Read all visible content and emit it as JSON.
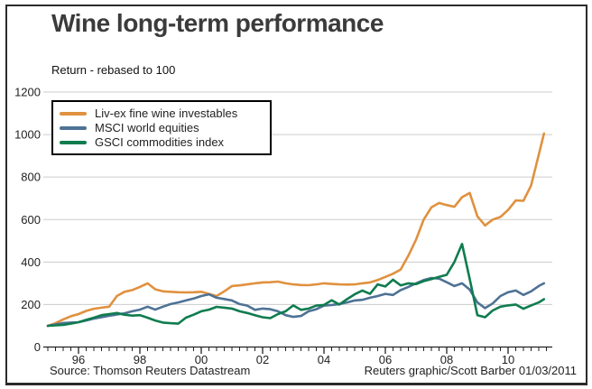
{
  "title": "Wine long-term performance",
  "subtitle": "Return - rebased to 100",
  "source": "Source: Thomson Reuters Datastream",
  "credit": "Reuters graphic/Scott Barber 01/03/2011",
  "colors": {
    "wine": "#E0913F",
    "equities": "#4E7295",
    "commodities": "#0F7C4F",
    "grid": "#cccccc",
    "axis": "#222222",
    "text": "#222222",
    "frame_border": "#2b2b2b"
  },
  "chart_data": {
    "type": "line",
    "title": "Wine long-term performance",
    "ylabel": "Return - rebased to 100",
    "ylim": [
      0,
      1200
    ],
    "y_ticks": [
      0,
      200,
      400,
      600,
      800,
      1000,
      1200
    ],
    "xlim": [
      1995,
      2011.3
    ],
    "x_tick_years": [
      1996,
      1998,
      2000,
      2002,
      2004,
      2006,
      2008,
      2010
    ],
    "x_tick_labels": [
      "96",
      "98",
      "00",
      "02",
      "04",
      "06",
      "08",
      "10"
    ],
    "minor_tick_step_years": 0.25,
    "grid": "horizontal",
    "legend_position": "top-left",
    "series": [
      {
        "name": "Liv-ex fine wine investables",
        "color": "#E0913F",
        "points": [
          [
            1995.0,
            100
          ],
          [
            1995.25,
            112
          ],
          [
            1995.5,
            130
          ],
          [
            1995.75,
            145
          ],
          [
            1996.0,
            155
          ],
          [
            1996.25,
            170
          ],
          [
            1996.5,
            180
          ],
          [
            1996.75,
            185
          ],
          [
            1997.0,
            190
          ],
          [
            1997.25,
            240
          ],
          [
            1997.5,
            260
          ],
          [
            1997.75,
            268
          ],
          [
            1998.0,
            283
          ],
          [
            1998.25,
            300
          ],
          [
            1998.5,
            272
          ],
          [
            1998.75,
            262
          ],
          [
            1999.0,
            260
          ],
          [
            1999.25,
            258
          ],
          [
            1999.5,
            257
          ],
          [
            1999.75,
            258
          ],
          [
            2000.0,
            260
          ],
          [
            2000.25,
            250
          ],
          [
            2000.5,
            240
          ],
          [
            2000.75,
            262
          ],
          [
            2001.0,
            287
          ],
          [
            2001.25,
            290
          ],
          [
            2001.5,
            295
          ],
          [
            2001.75,
            300
          ],
          [
            2002.0,
            304
          ],
          [
            2002.25,
            305
          ],
          [
            2002.5,
            308
          ],
          [
            2002.75,
            300
          ],
          [
            2003.0,
            295
          ],
          [
            2003.25,
            292
          ],
          [
            2003.5,
            291
          ],
          [
            2003.75,
            295
          ],
          [
            2004.0,
            300
          ],
          [
            2004.25,
            297
          ],
          [
            2004.5,
            295
          ],
          [
            2004.75,
            294
          ],
          [
            2005.0,
            295
          ],
          [
            2005.25,
            300
          ],
          [
            2005.5,
            304
          ],
          [
            2005.75,
            315
          ],
          [
            2006.0,
            330
          ],
          [
            2006.25,
            345
          ],
          [
            2006.5,
            365
          ],
          [
            2006.75,
            430
          ],
          [
            2007.0,
            505
          ],
          [
            2007.25,
            600
          ],
          [
            2007.5,
            657
          ],
          [
            2007.75,
            678
          ],
          [
            2008.0,
            668
          ],
          [
            2008.25,
            660
          ],
          [
            2008.5,
            705
          ],
          [
            2008.75,
            725
          ],
          [
            2009.0,
            615
          ],
          [
            2009.25,
            572
          ],
          [
            2009.5,
            600
          ],
          [
            2009.75,
            612
          ],
          [
            2010.0,
            645
          ],
          [
            2010.25,
            690
          ],
          [
            2010.5,
            688
          ],
          [
            2010.75,
            760
          ],
          [
            2011.0,
            905
          ],
          [
            2011.17,
            1005
          ]
        ]
      },
      {
        "name": "MSCI world equities",
        "color": "#4E7295",
        "points": [
          [
            1995.0,
            100
          ],
          [
            1995.25,
            106
          ],
          [
            1995.5,
            113
          ],
          [
            1995.75,
            115
          ],
          [
            1996.0,
            117
          ],
          [
            1996.25,
            125
          ],
          [
            1996.5,
            134
          ],
          [
            1996.75,
            140
          ],
          [
            1997.0,
            147
          ],
          [
            1997.25,
            153
          ],
          [
            1997.5,
            159
          ],
          [
            1997.75,
            168
          ],
          [
            1998.0,
            176
          ],
          [
            1998.25,
            190
          ],
          [
            1998.5,
            176
          ],
          [
            1998.75,
            190
          ],
          [
            1999.0,
            202
          ],
          [
            1999.25,
            210
          ],
          [
            1999.5,
            219
          ],
          [
            1999.75,
            228
          ],
          [
            2000.0,
            240
          ],
          [
            2000.25,
            248
          ],
          [
            2000.5,
            232
          ],
          [
            2000.75,
            226
          ],
          [
            2001.0,
            219
          ],
          [
            2001.25,
            202
          ],
          [
            2001.5,
            195
          ],
          [
            2001.75,
            175
          ],
          [
            2002.0,
            181
          ],
          [
            2002.25,
            178
          ],
          [
            2002.5,
            168
          ],
          [
            2002.75,
            150
          ],
          [
            2003.0,
            142
          ],
          [
            2003.25,
            146
          ],
          [
            2003.5,
            168
          ],
          [
            2003.75,
            178
          ],
          [
            2004.0,
            195
          ],
          [
            2004.25,
            198
          ],
          [
            2004.5,
            202
          ],
          [
            2004.75,
            210
          ],
          [
            2005.0,
            219
          ],
          [
            2005.25,
            222
          ],
          [
            2005.5,
            232
          ],
          [
            2005.75,
            240
          ],
          [
            2006.0,
            250
          ],
          [
            2006.25,
            245
          ],
          [
            2006.5,
            268
          ],
          [
            2006.75,
            283
          ],
          [
            2007.0,
            300
          ],
          [
            2007.25,
            315
          ],
          [
            2007.5,
            325
          ],
          [
            2007.75,
            322
          ],
          [
            2008.0,
            305
          ],
          [
            2008.25,
            287
          ],
          [
            2008.5,
            300
          ],
          [
            2008.75,
            270
          ],
          [
            2009.0,
            210
          ],
          [
            2009.25,
            183
          ],
          [
            2009.5,
            205
          ],
          [
            2009.75,
            240
          ],
          [
            2010.0,
            258
          ],
          [
            2010.25,
            266
          ],
          [
            2010.5,
            245
          ],
          [
            2010.75,
            262
          ],
          [
            2011.0,
            287
          ],
          [
            2011.17,
            300
          ]
        ]
      },
      {
        "name": "GSCI commodities index",
        "color": "#0F7C4F",
        "points": [
          [
            1995.0,
            100
          ],
          [
            1995.25,
            102
          ],
          [
            1995.5,
            104
          ],
          [
            1995.75,
            110
          ],
          [
            1996.0,
            117
          ],
          [
            1996.25,
            128
          ],
          [
            1996.5,
            138
          ],
          [
            1996.75,
            150
          ],
          [
            1997.0,
            155
          ],
          [
            1997.25,
            160
          ],
          [
            1997.5,
            152
          ],
          [
            1997.75,
            148
          ],
          [
            1998.0,
            150
          ],
          [
            1998.25,
            138
          ],
          [
            1998.5,
            125
          ],
          [
            1998.75,
            115
          ],
          [
            1999.0,
            112
          ],
          [
            1999.25,
            110
          ],
          [
            1999.5,
            138
          ],
          [
            1999.75,
            152
          ],
          [
            2000.0,
            168
          ],
          [
            2000.25,
            176
          ],
          [
            2000.5,
            189
          ],
          [
            2000.75,
            185
          ],
          [
            2001.0,
            181
          ],
          [
            2001.25,
            168
          ],
          [
            2001.5,
            160
          ],
          [
            2001.75,
            150
          ],
          [
            2002.0,
            140
          ],
          [
            2002.25,
            136
          ],
          [
            2002.5,
            155
          ],
          [
            2002.75,
            168
          ],
          [
            2003.0,
            196
          ],
          [
            2003.25,
            175
          ],
          [
            2003.5,
            181
          ],
          [
            2003.75,
            195
          ],
          [
            2004.0,
            198
          ],
          [
            2004.25,
            220
          ],
          [
            2004.5,
            200
          ],
          [
            2004.75,
            225
          ],
          [
            2005.0,
            248
          ],
          [
            2005.25,
            266
          ],
          [
            2005.5,
            250
          ],
          [
            2005.75,
            295
          ],
          [
            2006.0,
            285
          ],
          [
            2006.25,
            317
          ],
          [
            2006.5,
            290
          ],
          [
            2006.75,
            300
          ],
          [
            2007.0,
            296
          ],
          [
            2007.25,
            310
          ],
          [
            2007.5,
            320
          ],
          [
            2007.75,
            330
          ],
          [
            2008.0,
            340
          ],
          [
            2008.25,
            400
          ],
          [
            2008.5,
            485
          ],
          [
            2008.75,
            320
          ],
          [
            2009.0,
            150
          ],
          [
            2009.25,
            140
          ],
          [
            2009.5,
            172
          ],
          [
            2009.75,
            190
          ],
          [
            2010.0,
            196
          ],
          [
            2010.25,
            200
          ],
          [
            2010.5,
            180
          ],
          [
            2010.75,
            196
          ],
          [
            2011.0,
            210
          ],
          [
            2011.17,
            225
          ]
        ]
      }
    ]
  }
}
